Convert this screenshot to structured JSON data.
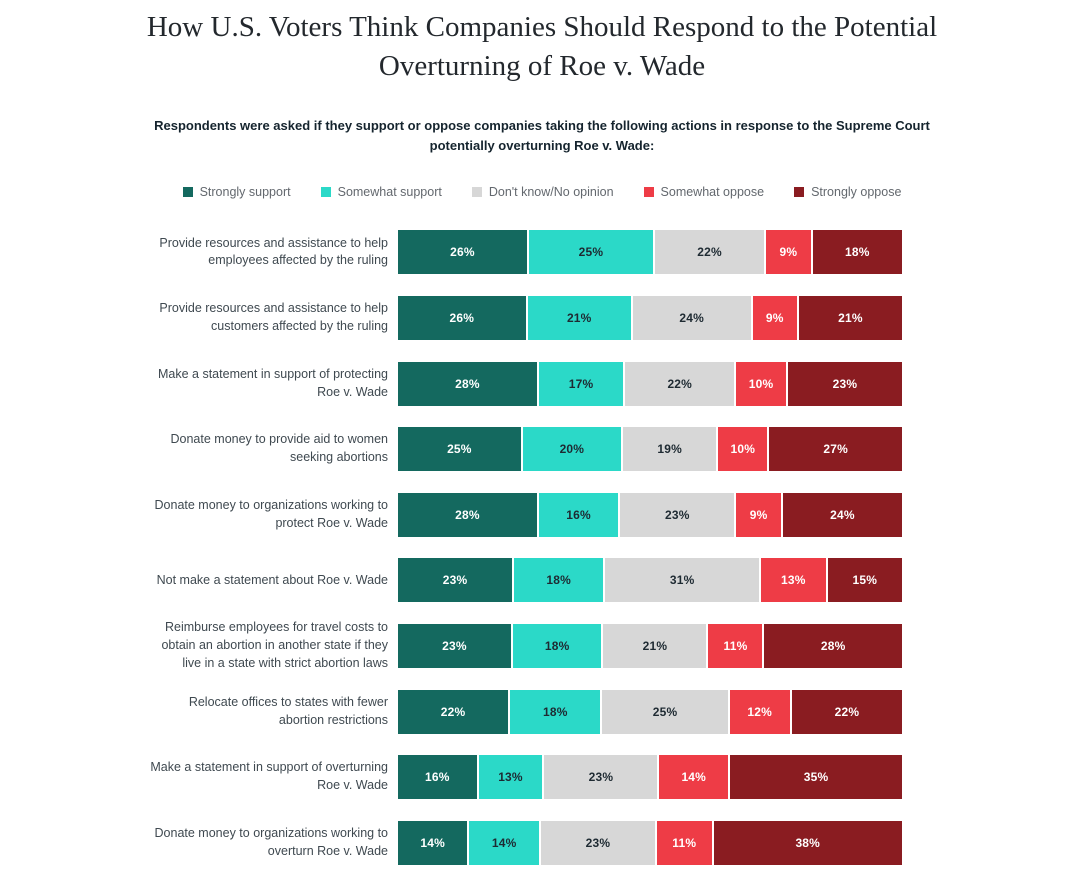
{
  "title": "How U.S. Voters Think Companies Should Respond to the Potential Overturning of Roe v. Wade",
  "subtitle": "Respondents were asked if they support or oppose companies taking the following actions in response to the Supreme Court potentially overturning Roe v. Wade:",
  "colors": {
    "background": "#ffffff",
    "title_text": "#23282d",
    "subtitle_text": "#15242e",
    "row_label_text": "#3f4950",
    "legend_text": "#63686e",
    "value_text_light": "#ffffff",
    "value_text_dark": "#1e2a32"
  },
  "chart_data": {
    "type": "bar",
    "variant": "horizontal-stacked",
    "unit": "%",
    "legend_position": "top",
    "grid": false,
    "title": "How U.S. Voters Think Companies Should Respond to the Potential Overturning of Roe v. Wade",
    "categories": [
      "Provide resources and assistance to help employees affected by the ruling",
      "Provide resources and assistance to help customers affected by the ruling",
      "Make a statement in support of protecting Roe v. Wade",
      "Donate money to provide aid to women seeking abortions",
      "Donate money to organizations working to protect Roe v. Wade",
      "Not make a statement about Roe v. Wade",
      "Reimburse employees for travel costs to obtain an abortion in another state if they live in a state with strict abortion laws",
      "Relocate offices to states with fewer abortion restrictions",
      "Make a statement in support of overturning Roe v. Wade",
      "Donate money to organizations working to overturn Roe v. Wade"
    ],
    "series": [
      {
        "name": "Strongly support",
        "color": "#14695f",
        "value_text_color": "#ffffff",
        "values": [
          26,
          26,
          28,
          25,
          28,
          23,
          23,
          22,
          16,
          14
        ]
      },
      {
        "name": "Somewhat support",
        "color": "#2bd9c8",
        "value_text_color": "#1e2a32",
        "values": [
          25,
          21,
          17,
          20,
          16,
          18,
          18,
          18,
          13,
          14
        ]
      },
      {
        "name": "Don't know/No opinion",
        "color": "#d7d7d7",
        "value_text_color": "#1e2a32",
        "values": [
          22,
          24,
          22,
          19,
          23,
          31,
          21,
          25,
          23,
          23
        ]
      },
      {
        "name": "Somewhat oppose",
        "color": "#ee3c46",
        "value_text_color": "#ffffff",
        "values": [
          9,
          9,
          10,
          10,
          9,
          13,
          11,
          12,
          14,
          11
        ]
      },
      {
        "name": "Strongly oppose",
        "color": "#8a1c21",
        "value_text_color": "#ffffff",
        "values": [
          18,
          21,
          23,
          27,
          24,
          15,
          28,
          22,
          35,
          38
        ]
      }
    ]
  }
}
